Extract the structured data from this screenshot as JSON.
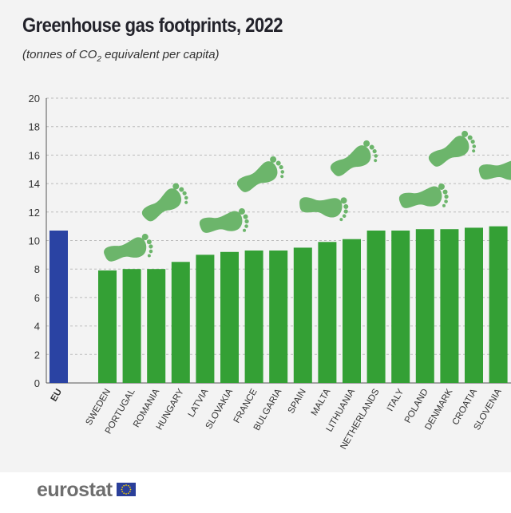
{
  "title": "Greenhouse gas footprints, 2022",
  "subtitle_pre": "(tonnes of CO",
  "subtitle_sub": "2",
  "subtitle_post": " equivalent per capita)",
  "footer": {
    "logo": "eurostat"
  },
  "colors": {
    "eu": "#2a43a3",
    "country": "#34a035",
    "footprint": "#6cb56b",
    "grid": "#bbbbbb"
  },
  "chart_data": {
    "type": "bar",
    "title": "Greenhouse gas footprints, 2022",
    "ylabel": "",
    "ylim": [
      0,
      20
    ],
    "yticks": [
      0,
      2,
      4,
      6,
      8,
      10,
      12,
      14,
      16,
      18,
      20
    ],
    "grid": true,
    "categories": [
      "EU",
      "SWEDEN",
      "PORTUGAL",
      "ROMANIA",
      "HUNGARY",
      "LATVIA",
      "SLOVAKIA",
      "FRANCE",
      "BULGARIA",
      "SPAIN",
      "MALTA",
      "LITHUANIA",
      "NETHERLANDS",
      "ITALY",
      "POLAND",
      "DENMARK",
      "CROATIA",
      "SLOVENIA"
    ],
    "values": [
      10.7,
      7.9,
      8.0,
      8.0,
      8.5,
      9.0,
      9.2,
      9.3,
      9.3,
      9.5,
      9.9,
      10.1,
      10.7,
      10.7,
      10.8,
      10.8,
      10.9,
      11.0
    ]
  }
}
